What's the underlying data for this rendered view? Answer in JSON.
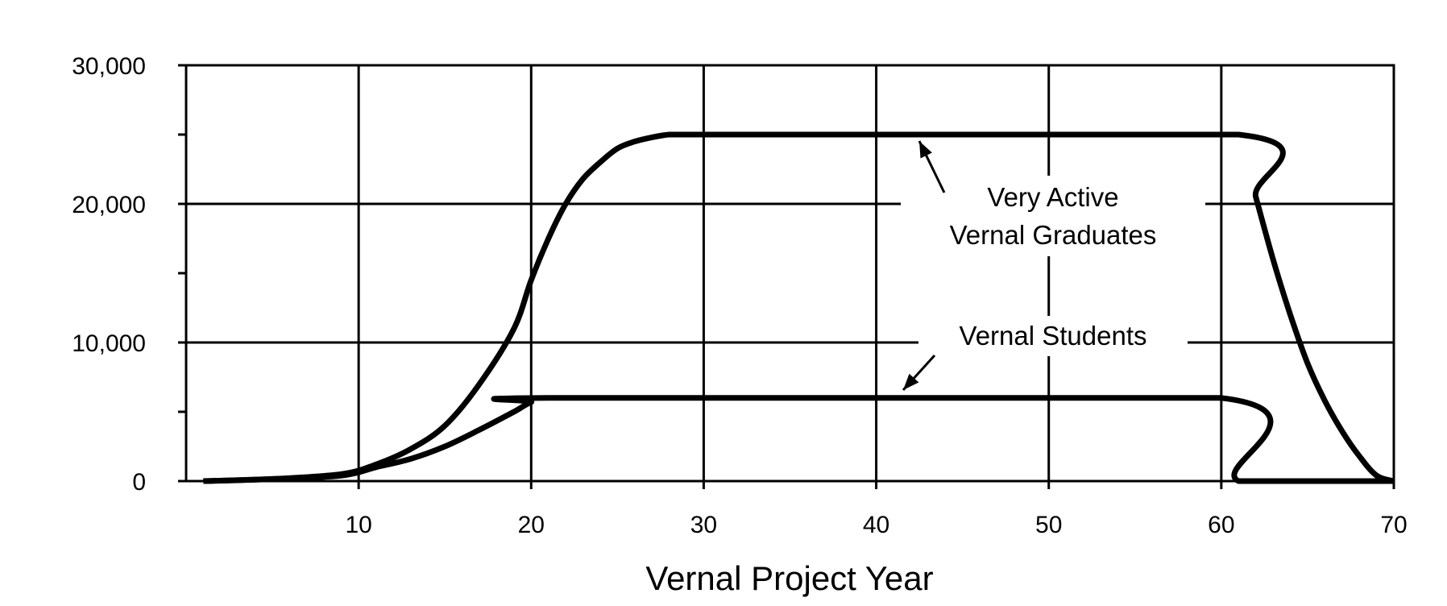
{
  "chart_data": {
    "type": "line",
    "xlabel": "Vernal Project Year",
    "ylabel": "",
    "xlim": [
      0,
      70
    ],
    "ylim": [
      0,
      30000
    ],
    "x_ticks": [
      10,
      20,
      30,
      40,
      50,
      60,
      70
    ],
    "x_tick_labels": [
      "10",
      "20",
      "30",
      "40",
      "50",
      "60",
      "70"
    ],
    "y_ticks": [
      0,
      10000,
      20000,
      30000
    ],
    "y_tick_labels": [
      "0",
      "10,000",
      "20,000",
      "30,000"
    ],
    "y_minor_ticks": [
      5000,
      15000,
      25000
    ],
    "grid": true,
    "legend": "none",
    "series": [
      {
        "name": "Very Active Vernal Graduates",
        "x": [
          1,
          5,
          9,
          11,
          13,
          15,
          17,
          19,
          20,
          21,
          22,
          23,
          24,
          25,
          26,
          27,
          28,
          29,
          30,
          61,
          62,
          63,
          64,
          65,
          66,
          67,
          68,
          69,
          70
        ],
        "y": [
          0,
          150,
          500,
          1200,
          2300,
          4000,
          7000,
          11000,
          14500,
          17500,
          20000,
          21800,
          23000,
          24000,
          24500,
          24800,
          25000,
          25000,
          25000,
          25000,
          20500,
          16000,
          12000,
          8500,
          5800,
          3600,
          1800,
          400,
          0
        ]
      },
      {
        "name": "Vernal Students",
        "x": [
          1,
          5,
          9,
          11,
          13,
          15,
          17,
          19,
          20,
          21,
          60,
          61,
          70
        ],
        "y": [
          0,
          150,
          400,
          1000,
          1600,
          2500,
          3700,
          5000,
          5700,
          6000,
          6000,
          0,
          0
        ]
      }
    ],
    "annotations": [
      {
        "target": "Very Active Vernal Graduates",
        "lines": [
          "Very Active",
          "Vernal Graduates"
        ]
      },
      {
        "target": "Vernal Students",
        "lines": [
          "Vernal Students"
        ]
      }
    ]
  }
}
